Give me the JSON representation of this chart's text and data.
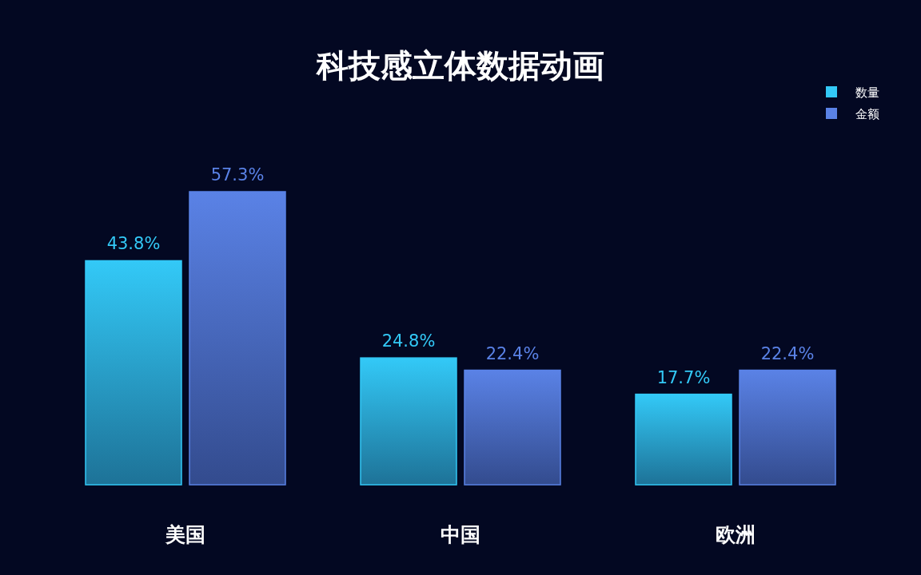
{
  "chart_data": {
    "type": "bar",
    "title": "科技感立体数据动画",
    "categories": [
      "美国",
      "中国",
      "欧洲"
    ],
    "series": [
      {
        "name": "数量",
        "color": "#33c9f7",
        "values": [
          43.8,
          24.8,
          17.7
        ],
        "value_labels": [
          "43.8%",
          "24.8%",
          "17.7%"
        ]
      },
      {
        "name": "金额",
        "color": "#5a82e6",
        "values": [
          57.3,
          22.4,
          22.4
        ],
        "value_labels": [
          "57.3%",
          "22.4%",
          "22.4%"
        ]
      }
    ],
    "legend": "top right"
  }
}
